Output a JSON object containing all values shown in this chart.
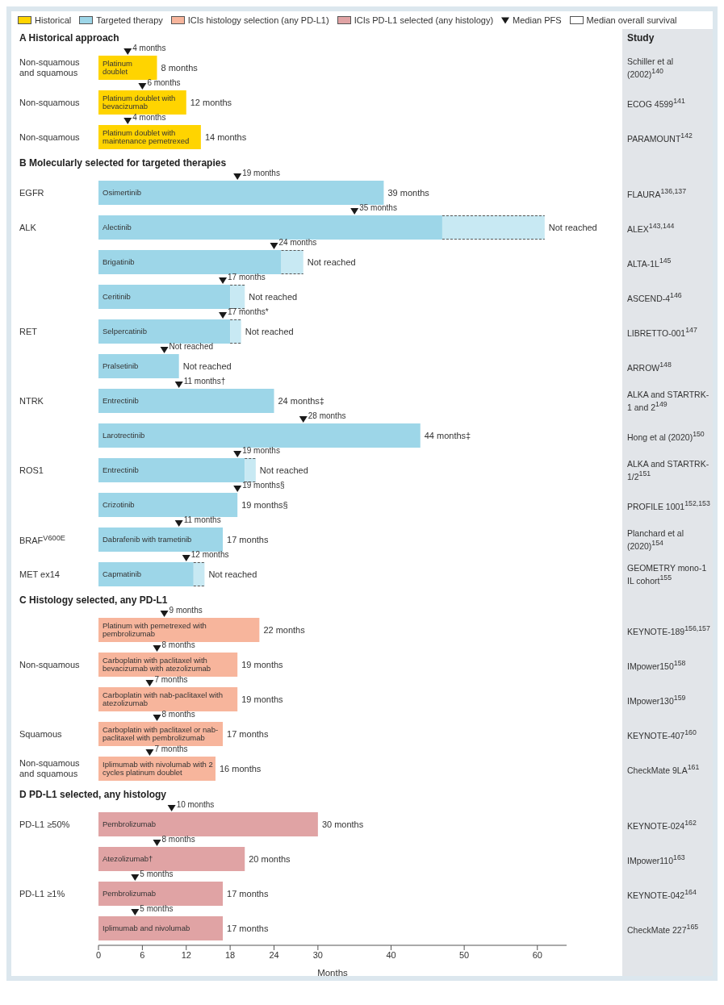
{
  "chart_data": {
    "type": "bar",
    "orientation": "horizontal",
    "stacked": true,
    "legend": "top",
    "xlabel": "Months",
    "xlim": [
      0,
      64
    ],
    "xticks": [
      0,
      6,
      12,
      18,
      24,
      30,
      40,
      50,
      60
    ],
    "categories": [
      "Platinum doublet",
      "Platinum doublet with bevacizumab",
      "Platinum doublet with maintenance pemetrexed",
      "Osimertinib",
      "Alectinib",
      "Brigatinib",
      "Ceritinib",
      "Selpercatinib",
      "Pralsetinib",
      "Entrectinib",
      "Larotrectinib",
      "Entrectinib",
      "Crizotinib",
      "Dabrafenib with trametinib",
      "Capmatinib",
      "Platinum with pemetrexed with pembrolizumab",
      "Carboplatin with paclitaxel with bevacizumab with atezolizumab",
      "Carboplatin with nab-paclitaxel with atezolizumab",
      "Carboplatin with paclitaxel or nab-paclitaxel with pembrolizumab",
      "Iplimumab with nivolumab with 2 cycles platinum doublet",
      "Pembrolizumab",
      "Atezolizumab†",
      "Pembrolizumab",
      "Iplimumab and nivolumab"
    ],
    "series": [
      {
        "name": "Historical",
        "color": "#ffd400",
        "values": [
          8,
          12,
          14,
          null,
          null,
          null,
          null,
          null,
          null,
          null,
          null,
          null,
          null,
          null,
          null,
          null,
          null,
          null,
          null,
          null,
          null,
          null,
          null,
          null
        ],
        "value_labels": [
          "8 months",
          "12 months",
          "14 months",
          null,
          null,
          null,
          null,
          null,
          null,
          null,
          null,
          null,
          null,
          null,
          null,
          null,
          null,
          null,
          null,
          null,
          null,
          null,
          null,
          null
        ]
      },
      {
        "name": "Targeted therapy",
        "color": "#9dd6e8",
        "values": [
          null,
          null,
          null,
          39,
          47,
          25,
          18,
          18,
          11,
          24,
          44,
          20,
          19,
          17,
          13,
          null,
          null,
          null,
          null,
          null,
          null,
          null,
          null,
          null
        ],
        "value_labels": [
          null,
          null,
          null,
          "39 months",
          null,
          null,
          null,
          null,
          "Not reached",
          "24 months‡",
          "44 months‡",
          null,
          "19 months§",
          "17 months",
          null,
          null,
          null,
          null,
          null,
          null,
          null,
          null,
          null,
          null
        ]
      },
      {
        "color": "#c8e9f3",
        "line_style": "dashed",
        "values": [
          null,
          null,
          null,
          null,
          14,
          3,
          2,
          1.5,
          null,
          null,
          null,
          1.5,
          null,
          null,
          1.5,
          null,
          null,
          null,
          null,
          null,
          null,
          null,
          null,
          null
        ],
        "value_labels": [
          null,
          null,
          null,
          null,
          "Not reached",
          "Not reached",
          "Not reached",
          "Not reached",
          null,
          null,
          null,
          "Not reached",
          null,
          null,
          "Not reached",
          null,
          null,
          null,
          null,
          null,
          null,
          null,
          null,
          null
        ]
      },
      {
        "name": "ICIs histology selection (any PD-L1)",
        "color": "#f7b59c",
        "values": [
          null,
          null,
          null,
          null,
          null,
          null,
          null,
          null,
          null,
          null,
          null,
          null,
          null,
          null,
          null,
          22,
          19,
          19,
          17,
          16,
          null,
          null,
          null,
          null
        ],
        "value_labels": [
          null,
          null,
          null,
          null,
          null,
          null,
          null,
          null,
          null,
          null,
          null,
          null,
          null,
          null,
          null,
          "22 months",
          "19 months",
          "19 months",
          "17 months",
          "16 months",
          null,
          null,
          null,
          null
        ]
      },
      {
        "name": "ICIs PD-L1 selected (any histology)",
        "color": "#e0a3a4",
        "values": [
          null,
          null,
          null,
          null,
          null,
          null,
          null,
          null,
          null,
          null,
          null,
          null,
          null,
          null,
          null,
          null,
          null,
          null,
          null,
          null,
          30,
          20,
          17,
          17
        ],
        "value_labels": [
          null,
          null,
          null,
          null,
          null,
          null,
          null,
          null,
          null,
          null,
          null,
          null,
          null,
          null,
          null,
          null,
          null,
          null,
          null,
          null,
          "30 months",
          "20 months",
          "17 months",
          "17 months"
        ]
      },
      {
        "name": "Median PFS",
        "type": "scatter",
        "marker": "triangle",
        "color": "#1a1a1a",
        "values": [
          4,
          6,
          4,
          19,
          35,
          24,
          17,
          17,
          9,
          11,
          28,
          19,
          19,
          11,
          12,
          9,
          8,
          7,
          8,
          7,
          10,
          8,
          5,
          5
        ],
        "value_labels": [
          "4 months",
          "6 months",
          "4 months",
          "19 months",
          "35 months",
          "24 months",
          "17 months",
          "17 months*",
          "Not reached",
          "11 months†",
          "28 months",
          "19 months",
          "19 months§",
          "11 months",
          "12 months",
          "9 months",
          "8 months",
          "7 months",
          "8 months",
          "7 months",
          "10 months",
          "8 months",
          "5 months",
          "5 months"
        ]
      },
      {
        "name": "Median overall survival",
        "type": "bar",
        "color": "#ffffff",
        "values": [
          null,
          null,
          null,
          null,
          null,
          null,
          null,
          null,
          null,
          null,
          null,
          null,
          null,
          null,
          null,
          null,
          null,
          null,
          null,
          null,
          null,
          null,
          null,
          null
        ]
      }
    ],
    "annotations": [
      "Study",
      "A Historical approach",
      "B Molecularly selected for targeted therapies",
      "C Histology selected, any PD-L1",
      "D PD-L1 selected, any histology",
      "Non-squamous and squamous",
      "Non-squamous",
      "Non-squamous",
      "EGFR",
      "ALK",
      "RET",
      "NTRK",
      "ROS1",
      "BRAF$^{V600E}$",
      "MET ex14",
      "Non-squamous",
      "Squamous",
      "Non-squamous and squamous",
      "PD-L1 ≥50%",
      "PD-L1 ≥1%",
      "Schiller et al (2002)$^{140}$",
      "ECOG 4599$^{141}$",
      "PARAMOUNT$^{142}$",
      "FLAURA$^{136,137}$",
      "ALEX$^{143,144}$",
      "ALTA-1L$^{145}$",
      "ASCEND-4$^{146}$",
      "LIBRETTO-001$^{147}$",
      "ARROW$^{148}$",
      "ALKA and STARTRK-1 and 2$^{149}$",
      "Hong et al (2020)$^{150}$",
      "ALKA and STARTRK-1/2$^{151}$",
      "PROFILE 1001$^{152,153}$",
      "Planchard et al (2020)$^{154}$",
      "GEOMETRY mono-1 IL cohort$^{155}$",
      "KEYNOTE-189$^{156,157}$",
      "IMpower150$^{158}$",
      "IMpower130$^{159}$",
      "KEYNOTE-407$^{160}$",
      "CheckMate 9LA$^{161}$",
      "KEYNOTE-024$^{162}$",
      "IMpower110$^{163}$",
      "KEYNOTE-042$^{164}$",
      "CheckMate 227$^{165}$"
    ]
  }
}
